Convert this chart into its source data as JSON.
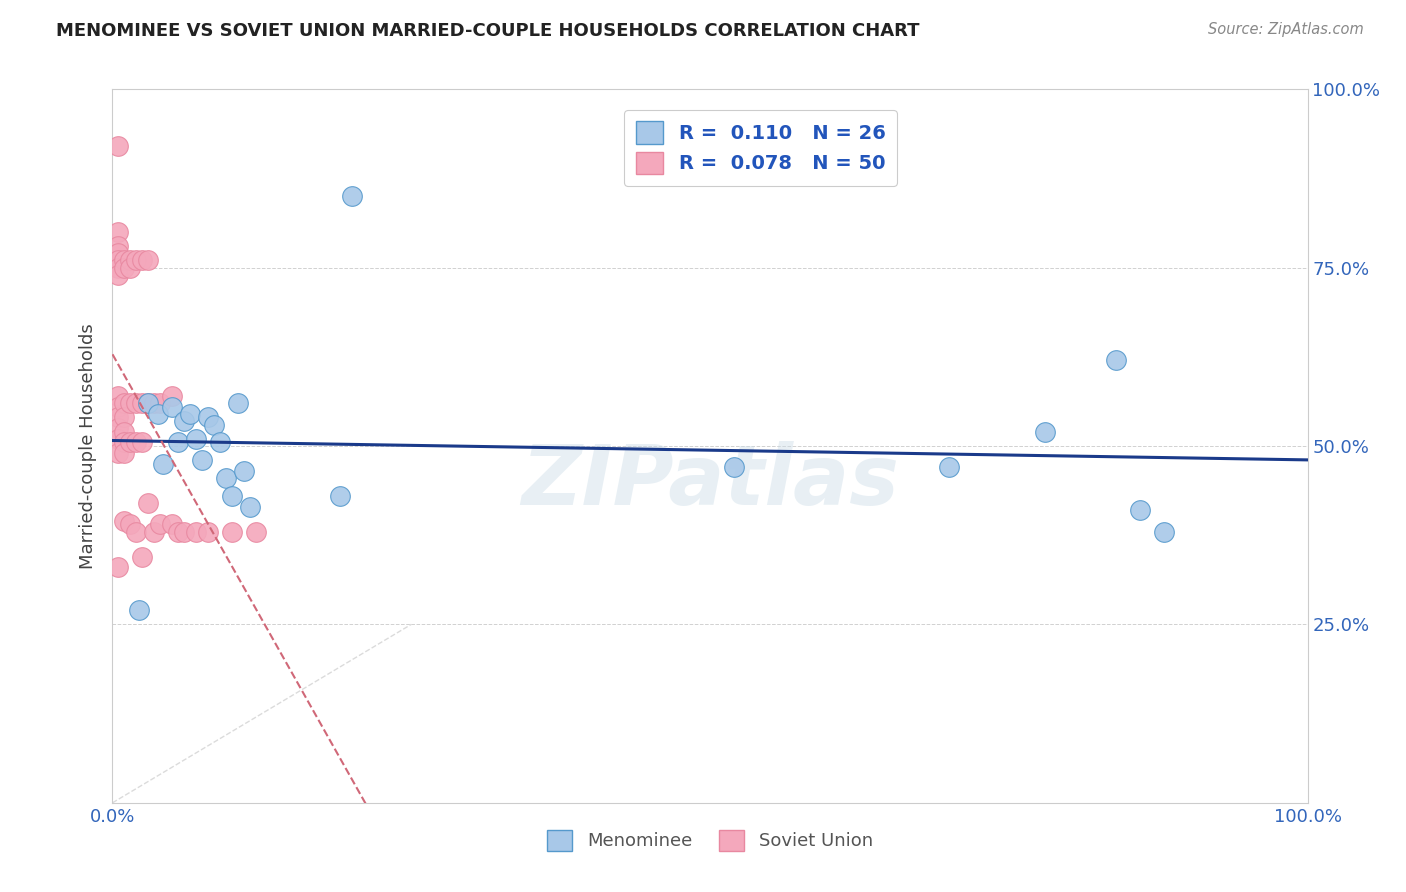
{
  "title": "MENOMINEE VS SOVIET UNION MARRIED-COUPLE HOUSEHOLDS CORRELATION CHART",
  "source": "Source: ZipAtlas.com",
  "ylabel": "Married-couple Households",
  "xlim": [
    0.0,
    1.0
  ],
  "ylim": [
    0.0,
    1.0
  ],
  "menominee_R": 0.11,
  "menominee_N": 26,
  "soviet_R": 0.078,
  "soviet_N": 50,
  "menominee_color": "#a8c8e8",
  "soviet_color": "#f4a8bc",
  "trend_blue": "#1a3a8a",
  "trend_pink": "#d06878",
  "diagonal_color": "#cccccc",
  "watermark": "ZIPatlas",
  "menominee_x": [
    0.022,
    0.03,
    0.038,
    0.042,
    0.05,
    0.055,
    0.06,
    0.065,
    0.07,
    0.075,
    0.08,
    0.085,
    0.09,
    0.095,
    0.1,
    0.105,
    0.11,
    0.115,
    0.19,
    0.2,
    0.52,
    0.7,
    0.78,
    0.84,
    0.86,
    0.88
  ],
  "menominee_y": [
    0.27,
    0.56,
    0.545,
    0.475,
    0.555,
    0.505,
    0.535,
    0.545,
    0.51,
    0.48,
    0.54,
    0.53,
    0.505,
    0.455,
    0.43,
    0.56,
    0.465,
    0.415,
    0.43,
    0.85,
    0.47,
    0.47,
    0.52,
    0.62,
    0.41,
    0.38
  ],
  "soviet_x": [
    0.005,
    0.005,
    0.005,
    0.005,
    0.005,
    0.005,
    0.005,
    0.005,
    0.005,
    0.005,
    0.005,
    0.005,
    0.005,
    0.005,
    0.01,
    0.01,
    0.01,
    0.01,
    0.01,
    0.01,
    0.01,
    0.01,
    0.015,
    0.015,
    0.015,
    0.015,
    0.015,
    0.02,
    0.02,
    0.02,
    0.02,
    0.025,
    0.025,
    0.025,
    0.025,
    0.03,
    0.03,
    0.03,
    0.035,
    0.035,
    0.04,
    0.04,
    0.05,
    0.05,
    0.055,
    0.06,
    0.07,
    0.08,
    0.1,
    0.12
  ],
  "soviet_y": [
    0.92,
    0.8,
    0.78,
    0.77,
    0.76,
    0.75,
    0.74,
    0.57,
    0.555,
    0.54,
    0.525,
    0.51,
    0.49,
    0.33,
    0.76,
    0.75,
    0.56,
    0.54,
    0.52,
    0.505,
    0.49,
    0.395,
    0.76,
    0.75,
    0.56,
    0.505,
    0.39,
    0.76,
    0.56,
    0.505,
    0.38,
    0.76,
    0.56,
    0.505,
    0.345,
    0.76,
    0.56,
    0.42,
    0.56,
    0.38,
    0.56,
    0.39,
    0.57,
    0.39,
    0.38,
    0.38,
    0.38,
    0.38,
    0.38,
    0.38
  ]
}
